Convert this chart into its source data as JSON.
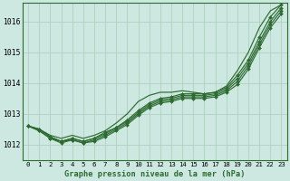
{
  "background_color": "#cce8e0",
  "plot_bg_color": "#cce8e0",
  "grid_color": "#aaccbb",
  "line_color": "#2d6b30",
  "title": "Graphe pression niveau de la mer (hPa)",
  "xlabel_ticks": [
    "0",
    "1",
    "2",
    "3",
    "4",
    "5",
    "6",
    "7",
    "8",
    "9",
    "10",
    "11",
    "12",
    "13",
    "14",
    "15",
    "16",
    "17",
    "18",
    "19",
    "20",
    "21",
    "22",
    "23"
  ],
  "ylim": [
    1011.5,
    1016.6
  ],
  "xlim": [
    -0.5,
    23.5
  ],
  "yticks": [
    1012,
    1013,
    1014,
    1015,
    1016
  ],
  "series": [
    [
      1012.6,
      1012.5,
      1012.25,
      1012.1,
      1012.2,
      1012.1,
      1012.2,
      1012.4,
      1012.55,
      1012.8,
      1013.1,
      1013.35,
      1013.5,
      1013.55,
      1013.65,
      1013.65,
      1013.65,
      1013.7,
      1013.85,
      1014.25,
      1014.75,
      1015.5,
      1016.15,
      1016.55
    ],
    [
      1012.6,
      1012.5,
      1012.25,
      1012.1,
      1012.2,
      1012.1,
      1012.2,
      1012.35,
      1012.55,
      1012.75,
      1013.05,
      1013.3,
      1013.45,
      1013.5,
      1013.6,
      1013.6,
      1013.6,
      1013.65,
      1013.8,
      1014.15,
      1014.65,
      1015.35,
      1016.0,
      1016.45
    ],
    [
      1012.6,
      1012.45,
      1012.2,
      1012.1,
      1012.15,
      1012.05,
      1012.15,
      1012.3,
      1012.5,
      1012.7,
      1013.0,
      1013.25,
      1013.4,
      1013.45,
      1013.55,
      1013.55,
      1013.55,
      1013.6,
      1013.75,
      1014.05,
      1014.55,
      1015.25,
      1015.9,
      1016.35
    ],
    [
      1012.6,
      1012.45,
      1012.2,
      1012.05,
      1012.15,
      1012.05,
      1012.1,
      1012.25,
      1012.45,
      1012.65,
      1012.95,
      1013.2,
      1013.35,
      1013.4,
      1013.5,
      1013.5,
      1013.5,
      1013.55,
      1013.7,
      1013.95,
      1014.45,
      1015.15,
      1015.8,
      1016.25
    ]
  ],
  "series_top": [
    1012.6,
    1012.5,
    1012.3,
    1012.2,
    1012.3,
    1012.2,
    1012.3,
    1012.45,
    1012.7,
    1013.0,
    1013.4,
    1013.6,
    1013.7,
    1013.7,
    1013.75,
    1013.7,
    1013.65,
    1013.7,
    1013.9,
    1014.4,
    1015.0,
    1015.8,
    1016.35,
    1016.55
  ]
}
